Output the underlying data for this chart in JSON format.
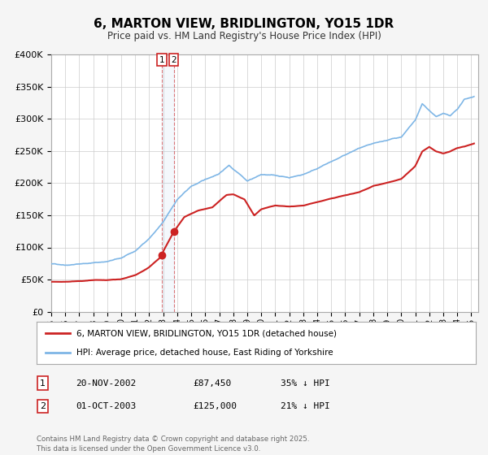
{
  "title": "6, MARTON VIEW, BRIDLINGTON, YO15 1DR",
  "subtitle": "Price paid vs. HM Land Registry's House Price Index (HPI)",
  "ylim": [
    0,
    400000
  ],
  "yticks": [
    0,
    50000,
    100000,
    150000,
    200000,
    250000,
    300000,
    350000,
    400000
  ],
  "ytick_labels": [
    "£0",
    "£50K",
    "£100K",
    "£150K",
    "£200K",
    "£250K",
    "£300K",
    "£350K",
    "£400K"
  ],
  "xlim_start": 1995.0,
  "xlim_end": 2025.5,
  "hpi_color": "#7eb6e6",
  "price_color": "#cc2222",
  "transaction1_date": 2002.896,
  "transaction1_price": 87450,
  "transaction2_date": 2003.748,
  "transaction2_price": 125000,
  "legend_line1": "6, MARTON VIEW, BRIDLINGTON, YO15 1DR (detached house)",
  "legend_line2": "HPI: Average price, detached house, East Riding of Yorkshire",
  "table_row1_num": "1",
  "table_row1_date": "20-NOV-2002",
  "table_row1_price": "£87,450",
  "table_row1_hpi": "35% ↓ HPI",
  "table_row2_num": "2",
  "table_row2_date": "01-OCT-2003",
  "table_row2_price": "£125,000",
  "table_row2_hpi": "21% ↓ HPI",
  "footer": "Contains HM Land Registry data © Crown copyright and database right 2025.\nThis data is licensed under the Open Government Licence v3.0.",
  "background_color": "#f5f5f5",
  "plot_background": "#ffffff",
  "grid_color": "#cccccc",
  "hpi_anchors_t": [
    1995.0,
    1996.0,
    1997.0,
    1998.0,
    1999.0,
    2000.0,
    2001.0,
    2002.0,
    2003.0,
    2004.0,
    2005.0,
    2006.0,
    2007.0,
    2007.7,
    2008.0,
    2008.5,
    2009.0,
    2009.5,
    2010.0,
    2011.0,
    2012.0,
    2013.0,
    2014.0,
    2015.0,
    2016.0,
    2017.0,
    2018.0,
    2019.0,
    2020.0,
    2021.0,
    2021.5,
    2022.0,
    2022.5,
    2023.0,
    2023.5,
    2024.0,
    2024.5,
    2025.2
  ],
  "hpi_anchors_v": [
    75000,
    74000,
    76000,
    78000,
    80000,
    85000,
    95000,
    115000,
    140000,
    175000,
    195000,
    205000,
    215000,
    228000,
    222000,
    215000,
    205000,
    210000,
    215000,
    213000,
    210000,
    215000,
    225000,
    235000,
    245000,
    255000,
    260000,
    265000,
    270000,
    295000,
    320000,
    310000,
    300000,
    305000,
    300000,
    310000,
    325000,
    330000
  ],
  "price_anchors_t": [
    1995.0,
    1996.0,
    1997.0,
    1998.0,
    1999.0,
    2000.0,
    2001.0,
    2002.0,
    2002.896,
    2003.0,
    2003.748,
    2004.5,
    2005.5,
    2006.5,
    2007.5,
    2008.0,
    2008.8,
    2009.5,
    2010.0,
    2011.0,
    2012.0,
    2013.0,
    2014.0,
    2015.0,
    2016.0,
    2017.0,
    2018.0,
    2019.0,
    2020.0,
    2021.0,
    2021.5,
    2022.0,
    2022.5,
    2023.0,
    2023.5,
    2024.0,
    2024.5,
    2025.2
  ],
  "price_anchors_v": [
    48000,
    48000,
    49000,
    50000,
    50000,
    52000,
    58000,
    70000,
    87450,
    95000,
    125000,
    148000,
    158000,
    163000,
    182000,
    183000,
    175000,
    150000,
    160000,
    165000,
    163000,
    165000,
    170000,
    175000,
    180000,
    185000,
    195000,
    200000,
    205000,
    225000,
    248000,
    255000,
    248000,
    245000,
    248000,
    253000,
    255000,
    260000
  ]
}
